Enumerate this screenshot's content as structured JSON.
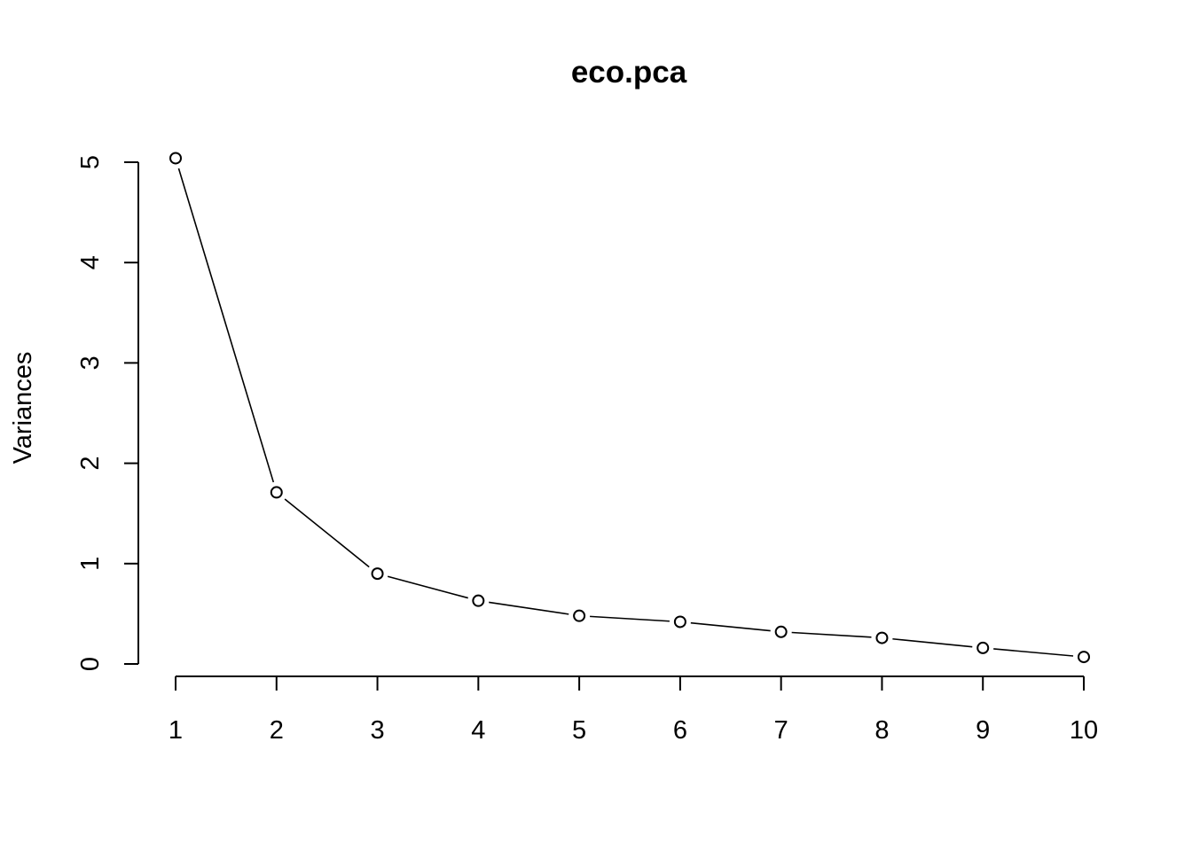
{
  "chart_data": {
    "type": "line",
    "title": "eco.pca",
    "xlabel": "",
    "ylabel": "Variances",
    "x": [
      1,
      2,
      3,
      4,
      5,
      6,
      7,
      8,
      9,
      10
    ],
    "x_tick_labels": [
      "1",
      "2",
      "3",
      "4",
      "5",
      "6",
      "7",
      "8",
      "9",
      "10"
    ],
    "y_ticks": [
      0,
      1,
      2,
      3,
      4,
      5
    ],
    "y_tick_labels": [
      "0",
      "1",
      "2",
      "3",
      "4",
      "5"
    ],
    "xlim": [
      1,
      10
    ],
    "ylim": [
      0,
      5
    ],
    "series": [
      {
        "values": [
          5.04,
          1.71,
          0.9,
          0.63,
          0.48,
          0.42,
          0.32,
          0.26,
          0.16,
          0.07
        ],
        "marker": "open-circle",
        "line": "overplotted"
      }
    ],
    "grid": false,
    "legend": "none"
  }
}
